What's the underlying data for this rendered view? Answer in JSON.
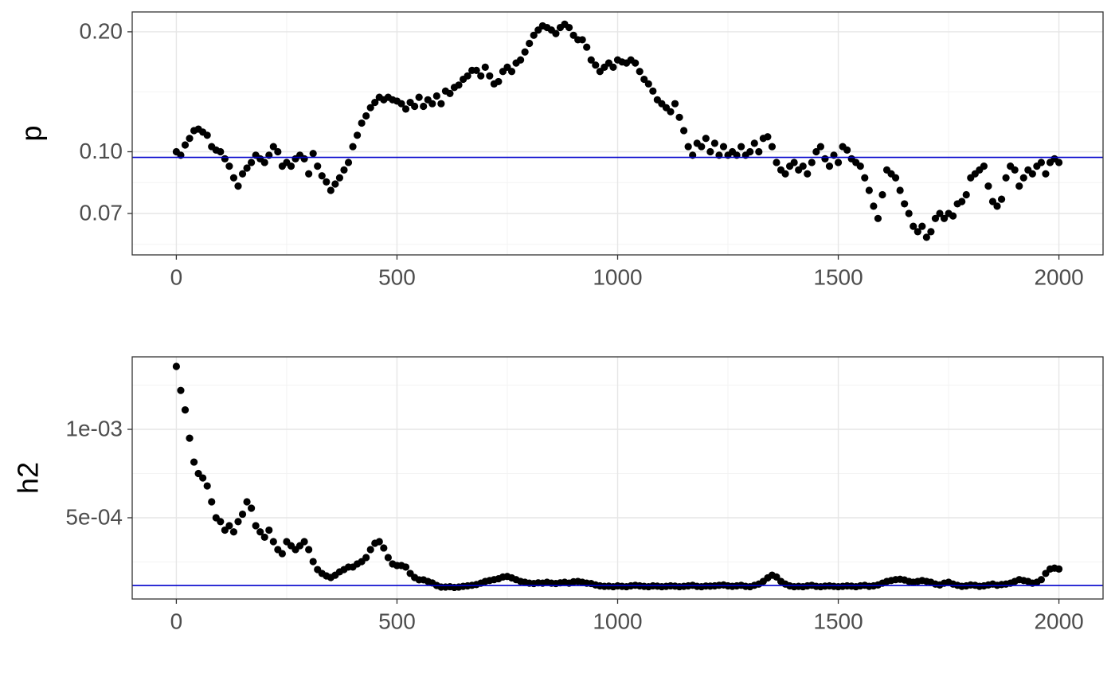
{
  "chart_data": [
    {
      "type": "scatter",
      "y_label": "p",
      "y_log": true,
      "color": "#000000",
      "grid": true,
      "xlim": [
        -100,
        2100
      ],
      "xticks": [
        0,
        500,
        1000,
        1500,
        2000
      ],
      "ylim": [
        0.0551,
        0.2243
      ],
      "yticks": [
        {
          "value": 0.07,
          "label": "0.07"
        },
        {
          "value": 0.1,
          "label": "0.10"
        },
        {
          "value": 0.2,
          "label": "0.20"
        }
      ],
      "hline": {
        "value": 0.0968,
        "color": "#0000cc"
      },
      "x": [
        0,
        10,
        20,
        30,
        40,
        50,
        60,
        70,
        80,
        90,
        100,
        110,
        120,
        130,
        140,
        150,
        160,
        170,
        180,
        190,
        200,
        210,
        220,
        230,
        240,
        250,
        260,
        270,
        280,
        290,
        300,
        310,
        320,
        330,
        340,
        350,
        360,
        370,
        380,
        390,
        400,
        410,
        420,
        430,
        440,
        450,
        460,
        470,
        480,
        490,
        500,
        510,
        520,
        530,
        540,
        550,
        560,
        570,
        580,
        590,
        600,
        610,
        620,
        630,
        640,
        650,
        660,
        670,
        680,
        690,
        700,
        710,
        720,
        730,
        740,
        750,
        760,
        770,
        780,
        790,
        800,
        810,
        820,
        830,
        840,
        850,
        860,
        870,
        880,
        890,
        900,
        910,
        920,
        930,
        940,
        950,
        960,
        970,
        980,
        990,
        1000,
        1010,
        1020,
        1030,
        1040,
        1050,
        1060,
        1070,
        1080,
        1090,
        1100,
        1110,
        1120,
        1130,
        1140,
        1150,
        1160,
        1170,
        1180,
        1190,
        1200,
        1210,
        1220,
        1230,
        1240,
        1250,
        1260,
        1270,
        1280,
        1290,
        1300,
        1310,
        1320,
        1330,
        1340,
        1350,
        1360,
        1370,
        1380,
        1390,
        1400,
        1410,
        1420,
        1430,
        1440,
        1450,
        1460,
        1470,
        1480,
        1490,
        1500,
        1510,
        1520,
        1530,
        1540,
        1550,
        1560,
        1570,
        1580,
        1590,
        1600,
        1610,
        1620,
        1630,
        1640,
        1650,
        1660,
        1670,
        1680,
        1690,
        1700,
        1710,
        1720,
        1730,
        1740,
        1750,
        1760,
        1770,
        1780,
        1790,
        1800,
        1810,
        1820,
        1830,
        1840,
        1850,
        1860,
        1870,
        1880,
        1890,
        1900,
        1910,
        1920,
        1930,
        1940,
        1950,
        1960,
        1970,
        1980,
        1990,
        2000
      ],
      "values": [
        0.1,
        0.098,
        0.104,
        0.108,
        0.113,
        0.114,
        0.112,
        0.11,
        0.103,
        0.101,
        0.1,
        0.096,
        0.092,
        0.086,
        0.082,
        0.088,
        0.091,
        0.094,
        0.098,
        0.096,
        0.094,
        0.098,
        0.103,
        0.1,
        0.092,
        0.094,
        0.092,
        0.096,
        0.098,
        0.096,
        0.088,
        0.099,
        0.092,
        0.087,
        0.084,
        0.08,
        0.083,
        0.086,
        0.09,
        0.094,
        0.103,
        0.11,
        0.118,
        0.123,
        0.129,
        0.133,
        0.137,
        0.135,
        0.137,
        0.135,
        0.134,
        0.132,
        0.128,
        0.133,
        0.13,
        0.137,
        0.13,
        0.135,
        0.132,
        0.138,
        0.132,
        0.142,
        0.14,
        0.145,
        0.147,
        0.152,
        0.155,
        0.16,
        0.16,
        0.155,
        0.163,
        0.155,
        0.148,
        0.15,
        0.159,
        0.163,
        0.159,
        0.167,
        0.17,
        0.178,
        0.187,
        0.196,
        0.202,
        0.207,
        0.205,
        0.202,
        0.198,
        0.205,
        0.209,
        0.205,
        0.196,
        0.191,
        0.191,
        0.183,
        0.17,
        0.165,
        0.159,
        0.163,
        0.167,
        0.163,
        0.17,
        0.168,
        0.167,
        0.17,
        0.167,
        0.159,
        0.152,
        0.148,
        0.142,
        0.135,
        0.132,
        0.129,
        0.126,
        0.132,
        0.122,
        0.113,
        0.103,
        0.098,
        0.105,
        0.103,
        0.108,
        0.1,
        0.105,
        0.098,
        0.103,
        0.098,
        0.1,
        0.098,
        0.103,
        0.098,
        0.1,
        0.105,
        0.1,
        0.108,
        0.109,
        0.103,
        0.094,
        0.09,
        0.088,
        0.092,
        0.094,
        0.09,
        0.092,
        0.088,
        0.094,
        0.1,
        0.103,
        0.096,
        0.092,
        0.098,
        0.094,
        0.103,
        0.101,
        0.096,
        0.094,
        0.092,
        0.086,
        0.08,
        0.073,
        0.068,
        0.078,
        0.09,
        0.088,
        0.086,
        0.08,
        0.074,
        0.07,
        0.065,
        0.063,
        0.065,
        0.061,
        0.063,
        0.068,
        0.07,
        0.068,
        0.07,
        0.069,
        0.074,
        0.075,
        0.078,
        0.086,
        0.088,
        0.09,
        0.092,
        0.082,
        0.075,
        0.073,
        0.076,
        0.086,
        0.092,
        0.09,
        0.082,
        0.086,
        0.09,
        0.088,
        0.092,
        0.094,
        0.088,
        0.094,
        0.096,
        0.094
      ]
    },
    {
      "type": "scatter",
      "y_label": "h2",
      "y_log": false,
      "color": "#000000",
      "grid": true,
      "xlim": [
        -100,
        2100
      ],
      "xticks": [
        0,
        500,
        1000,
        1500,
        2000
      ],
      "ylim": [
        4.05e-05,
        0.00141
      ],
      "yticks": [
        {
          "value": 0.0005,
          "label": "5e-04"
        },
        {
          "value": 0.001,
          "label": "1e-03"
        }
      ],
      "hline": {
        "value": 0.000117,
        "color": "#0000cc"
      },
      "x": [
        0,
        10,
        20,
        30,
        40,
        50,
        60,
        70,
        80,
        90,
        100,
        110,
        120,
        130,
        140,
        150,
        160,
        170,
        180,
        190,
        200,
        210,
        220,
        230,
        240,
        250,
        260,
        270,
        280,
        290,
        300,
        310,
        320,
        330,
        340,
        350,
        360,
        370,
        380,
        390,
        400,
        410,
        420,
        430,
        440,
        450,
        460,
        470,
        480,
        490,
        500,
        510,
        520,
        530,
        540,
        550,
        560,
        570,
        580,
        590,
        600,
        610,
        620,
        630,
        640,
        650,
        660,
        670,
        680,
        690,
        700,
        710,
        720,
        730,
        740,
        750,
        760,
        770,
        780,
        790,
        800,
        810,
        820,
        830,
        840,
        850,
        860,
        870,
        880,
        890,
        900,
        910,
        920,
        930,
        940,
        950,
        960,
        970,
        980,
        990,
        1000,
        1010,
        1020,
        1030,
        1040,
        1050,
        1060,
        1070,
        1080,
        1090,
        1100,
        1110,
        1120,
        1130,
        1140,
        1150,
        1160,
        1170,
        1180,
        1190,
        1200,
        1210,
        1220,
        1230,
        1240,
        1250,
        1260,
        1270,
        1280,
        1290,
        1300,
        1310,
        1320,
        1330,
        1340,
        1350,
        1360,
        1370,
        1380,
        1390,
        1400,
        1410,
        1420,
        1430,
        1440,
        1450,
        1460,
        1470,
        1480,
        1490,
        1500,
        1510,
        1520,
        1530,
        1540,
        1550,
        1560,
        1570,
        1580,
        1590,
        1600,
        1610,
        1620,
        1630,
        1640,
        1650,
        1660,
        1670,
        1680,
        1690,
        1700,
        1710,
        1720,
        1730,
        1740,
        1750,
        1760,
        1770,
        1780,
        1790,
        1800,
        1810,
        1820,
        1830,
        1840,
        1850,
        1860,
        1870,
        1880,
        1890,
        1900,
        1910,
        1920,
        1930,
        1940,
        1950,
        1960,
        1970,
        1980,
        1990,
        2000
      ],
      "values": [
        0.001356,
        0.00122,
        0.00111,
        0.00095,
        0.000815,
        0.00075,
        0.000725,
        0.00068,
        0.00059,
        0.0005,
        0.000478,
        0.00043,
        0.000455,
        0.00042,
        0.000478,
        0.00052,
        0.00059,
        0.000554,
        0.000455,
        0.00042,
        0.00039,
        0.00043,
        0.000365,
        0.00032,
        0.000297,
        0.000365,
        0.000342,
        0.00032,
        0.000342,
        0.000365,
        0.00032,
        0.000252,
        0.000207,
        0.000185,
        0.000171,
        0.000162,
        0.000175,
        0.000194,
        0.000207,
        0.000221,
        0.000221,
        0.000239,
        0.000252,
        0.000275,
        0.00032,
        0.000356,
        0.000365,
        0.000329,
        0.000275,
        0.000239,
        0.00023,
        0.00023,
        0.000221,
        0.000185,
        0.000162,
        0.000149,
        0.000149,
        0.00014,
        0.000131,
        0.000117,
        0.000108,
        0.000108,
        0.00011,
        0.000106,
        0.000108,
        0.000112,
        0.000115,
        0.000118,
        0.000122,
        0.00013,
        0.00014,
        0.000145,
        0.00015,
        0.000155,
        0.000165,
        0.000168,
        0.00016,
        0.00015,
        0.00014,
        0.000135,
        0.00013,
        0.000128,
        0.000132,
        0.00013,
        0.000135,
        0.00013,
        0.000128,
        0.000132,
        0.000135,
        0.00013,
        0.000138,
        0.00014,
        0.000135,
        0.00013,
        0.000128,
        0.00012,
        0.000115,
        0.000112,
        0.000113,
        0.00011,
        0.000115,
        0.000112,
        0.00011,
        0.000115,
        0.000118,
        0.000115,
        0.000112,
        0.00011,
        0.000115,
        0.000113,
        0.00011,
        0.000112,
        0.000115,
        0.000113,
        0.00011,
        0.000112,
        0.000115,
        0.000118,
        0.000112,
        0.00011,
        0.000114,
        0.000113,
        0.000115,
        0.000118,
        0.00012,
        0.000115,
        0.000112,
        0.000115,
        0.000118,
        0.000112,
        0.00011,
        0.000118,
        0.000125,
        0.00014,
        0.00016,
        0.000175,
        0.000165,
        0.00014,
        0.000125,
        0.000115,
        0.00011,
        0.000112,
        0.00011,
        0.000115,
        0.000118,
        0.000112,
        0.00011,
        0.000113,
        0.000115,
        0.000112,
        0.00011,
        0.000112,
        0.000115,
        0.000113,
        0.00011,
        0.000115,
        0.000118,
        0.000112,
        0.000115,
        0.00012,
        0.00013,
        0.00014,
        0.000145,
        0.00015,
        0.000152,
        0.000148,
        0.00014,
        0.000135,
        0.00014,
        0.000145,
        0.00014,
        0.000135,
        0.000125,
        0.00012,
        0.00013,
        0.000135,
        0.000125,
        0.000118,
        0.000112,
        0.000115,
        0.00012,
        0.000118,
        0.000112,
        0.000115,
        0.00012,
        0.000125,
        0.000118,
        0.000122,
        0.000125,
        0.00013,
        0.00014,
        0.00015,
        0.000145,
        0.00014,
        0.00013,
        0.000135,
        0.00015,
        0.000185,
        0.00021,
        0.000215,
        0.00021
      ]
    }
  ]
}
